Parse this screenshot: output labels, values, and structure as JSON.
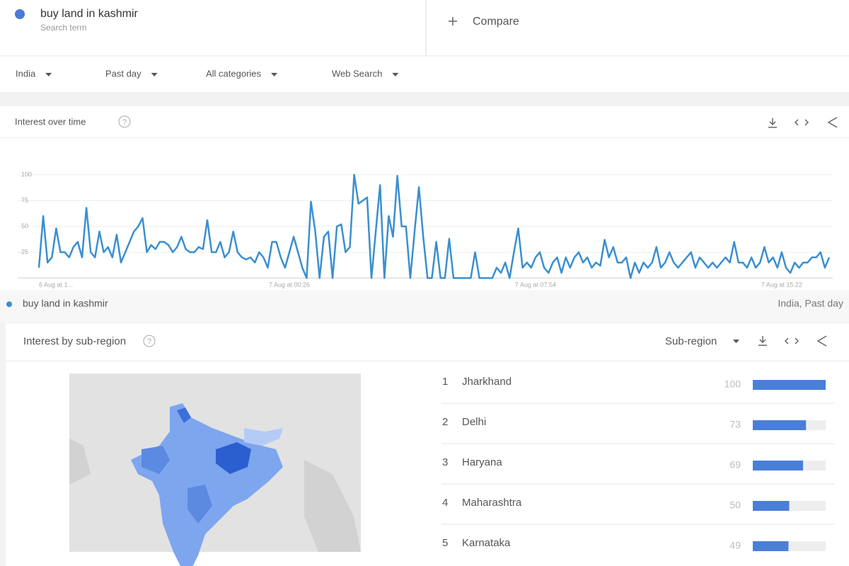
{
  "header": {
    "term": "buy land in kashmir",
    "term_subtitle": "Search term",
    "compare": "Compare"
  },
  "filters": [
    "India",
    "Past day",
    "All categories",
    "Web Search"
  ],
  "chart_data": {
    "type": "line",
    "title": "Interest over time",
    "categories": [
      "6 Aug at 1...",
      null,
      null,
      null,
      null,
      null,
      null,
      null,
      null,
      null,
      null,
      null,
      null,
      null,
      null,
      null,
      null,
      null,
      null,
      null,
      null,
      null,
      null,
      null,
      null,
      null,
      null,
      null,
      null,
      null,
      null,
      null,
      null,
      null,
      null,
      null,
      null,
      null,
      null,
      null,
      null,
      null,
      null,
      null,
      null,
      null,
      null,
      null,
      null,
      null,
      null,
      null,
      null,
      null,
      null,
      null,
      null,
      null,
      "7 Aug at 00:26",
      null,
      null,
      null,
      null,
      null,
      null,
      null,
      null,
      null,
      null,
      null,
      null,
      null,
      null,
      null,
      null,
      null,
      null,
      null,
      null,
      null,
      null,
      null,
      null,
      null,
      null,
      null,
      null,
      null,
      null,
      null,
      null,
      null,
      null,
      null,
      null,
      null,
      null,
      null,
      null,
      null,
      null,
      null,
      null,
      null,
      null,
      null,
      null,
      null,
      null,
      null,
      null,
      null,
      null,
      null,
      null,
      "7 Aug at 07:54",
      null,
      null,
      null,
      null,
      null,
      null,
      null,
      null,
      null,
      null,
      null,
      null,
      null,
      null,
      null,
      null,
      null,
      null,
      null,
      null,
      null,
      null,
      null,
      null,
      null,
      null,
      null,
      null,
      null,
      null,
      null,
      null,
      null,
      null,
      null,
      null,
      null,
      null,
      null,
      null,
      null,
      null,
      null,
      null,
      null,
      null,
      null,
      null,
      null,
      null,
      null,
      null,
      null,
      null,
      null,
      null,
      "7 Aug at 15:22",
      null,
      null,
      null,
      null,
      null,
      null,
      null,
      null,
      null,
      null,
      null
    ],
    "series": [
      {
        "name": "buy land in kashmir",
        "color": "#3a8fd0",
        "values": [
          10,
          60,
          15,
          20,
          48,
          25,
          25,
          20,
          30,
          35,
          20,
          68,
          25,
          20,
          45,
          25,
          30,
          20,
          42,
          15,
          25,
          35,
          45,
          50,
          58,
          25,
          32,
          28,
          35,
          35,
          32,
          25,
          30,
          40,
          28,
          25,
          25,
          30,
          28,
          56,
          25,
          25,
          35,
          20,
          25,
          45,
          25,
          20,
          18,
          20,
          15,
          25,
          20,
          10,
          35,
          35,
          20,
          10,
          25,
          40,
          25,
          10,
          0,
          74,
          45,
          0,
          40,
          45,
          0,
          50,
          52,
          25,
          30,
          100,
          72,
          75,
          78,
          0,
          45,
          90,
          0,
          60,
          40,
          99,
          50,
          50,
          0,
          45,
          88,
          40,
          0,
          0,
          35,
          0,
          0,
          38,
          0,
          0,
          0,
          0,
          0,
          25,
          0,
          0,
          0,
          0,
          10,
          5,
          15,
          0,
          25,
          48,
          10,
          15,
          10,
          20,
          25,
          10,
          5,
          15,
          20,
          5,
          20,
          10,
          20,
          25,
          15,
          20,
          10,
          15,
          12,
          37,
          20,
          30,
          15,
          15,
          20,
          0,
          15,
          5,
          15,
          10,
          15,
          30,
          10,
          15,
          25,
          15,
          10,
          15,
          20,
          25,
          10,
          20,
          15,
          10,
          15,
          10,
          15,
          20,
          15,
          35,
          15,
          15,
          10,
          20,
          10,
          15,
          30,
          15,
          20,
          10,
          25,
          10,
          5,
          15,
          10,
          15,
          15,
          20,
          20,
          25,
          10,
          20
        ]
      }
    ],
    "ylim": [
      0,
      100
    ],
    "yticks": [
      25,
      50,
      75,
      100
    ],
    "grid": true,
    "legend_note": "India, Past day"
  },
  "region_section": {
    "title": "Interest by sub-region",
    "selector": "Sub-region",
    "bar_color": "#4a7fd8",
    "regions": [
      {
        "rank": 1,
        "name": "Jharkhand",
        "value": 100
      },
      {
        "rank": 2,
        "name": "Delhi",
        "value": 73
      },
      {
        "rank": 3,
        "name": "Haryana",
        "value": 69
      },
      {
        "rank": 4,
        "name": "Maharashtra",
        "value": 50
      },
      {
        "rank": 5,
        "name": "Karnataka",
        "value": 49
      }
    ]
  }
}
